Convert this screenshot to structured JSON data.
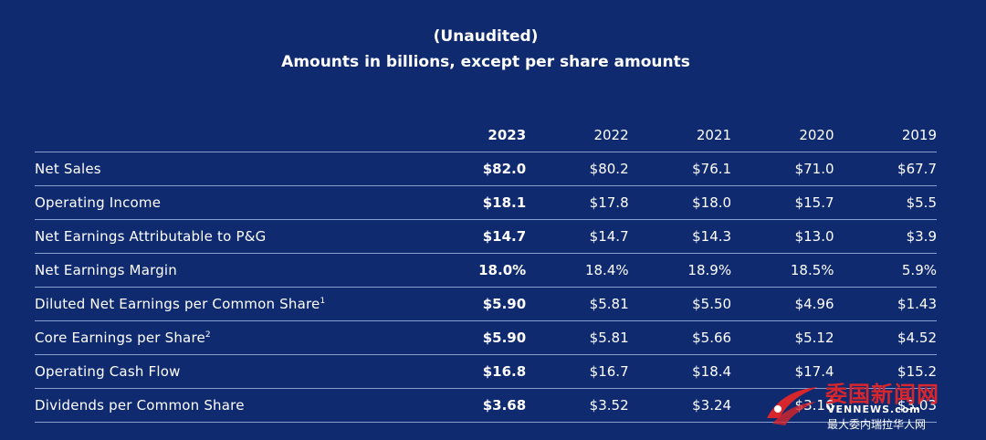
{
  "header": {
    "line1": "(Unaudited)",
    "line2": "Amounts in billions, except per share amounts"
  },
  "table": {
    "years": [
      "2023",
      "2022",
      "2021",
      "2020",
      "2019"
    ],
    "rows": [
      {
        "label": "Net Sales",
        "footnote": "",
        "values": [
          "$82.0",
          "$80.2",
          "$76.1",
          "$71.0",
          "$67.7"
        ]
      },
      {
        "label": "Operating Income",
        "footnote": "",
        "values": [
          "$18.1",
          "$17.8",
          "$18.0",
          "$15.7",
          "$5.5"
        ]
      },
      {
        "label": "Net Earnings Attributable to P&G",
        "footnote": "",
        "values": [
          "$14.7",
          "$14.7",
          "$14.3",
          "$13.0",
          "$3.9"
        ]
      },
      {
        "label": "Net Earnings Margin",
        "footnote": "",
        "values": [
          "18.0%",
          "18.4%",
          "18.9%",
          "18.5%",
          "5.9%"
        ]
      },
      {
        "label": "Diluted Net Earnings per Common Share",
        "footnote": "1",
        "values": [
          "$5.90",
          "$5.81",
          "$5.50",
          "$4.96",
          "$1.43"
        ]
      },
      {
        "label": "Core Earnings per Share",
        "footnote": "2",
        "values": [
          "$5.90",
          "$5.81",
          "$5.66",
          "$5.12",
          "$4.52"
        ]
      },
      {
        "label": "Operating Cash Flow",
        "footnote": "",
        "values": [
          "$16.8",
          "$16.7",
          "$18.4",
          "$17.4",
          "$15.2"
        ]
      },
      {
        "label": "Dividends per Common Share",
        "footnote": "",
        "values": [
          "$3.68",
          "$3.52",
          "$3.24",
          "$3.16",
          "$3.03"
        ]
      }
    ]
  },
  "watermark": {
    "title": "委国新闻网",
    "domain": "VENNEWS.com",
    "tagline": "最大委内瑞拉华人网",
    "color": "#d7262c"
  }
}
